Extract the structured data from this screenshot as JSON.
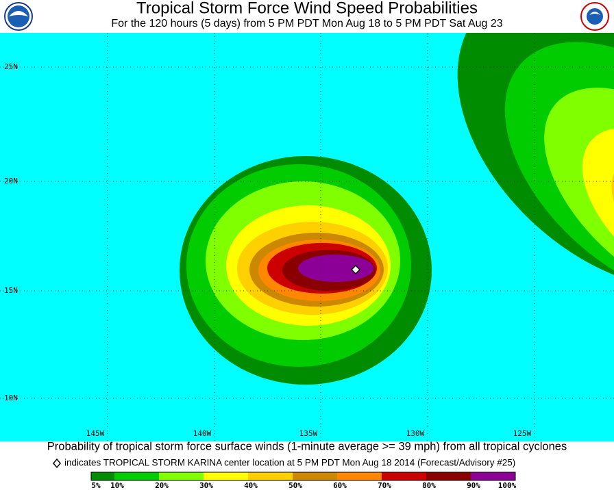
{
  "header": {
    "title": "Tropical Storm Force Wind Speed Probabilities",
    "subtitle": "For the 120 hours (5 days) from 5 PM PDT Mon Aug 18 to 5 PM PDT Sat Aug 23"
  },
  "map": {
    "background": "#00ffff",
    "lat_labels": [
      "25N",
      "20N",
      "15N",
      "10N"
    ],
    "lon_labels": [
      "145W",
      "140W",
      "135W",
      "130W",
      "125W"
    ]
  },
  "footer": {
    "caption": "Probability of tropical storm force surface winds (1-minute average >= 39 mph) from all tropical cyclones",
    "note": "indicates TROPICAL STORM KARINA center location at 5 PM PDT Mon Aug 18 2014 (Forecast/Advisory #25)"
  },
  "legend": {
    "labels": [
      "5%",
      "10%",
      "20%",
      "30%",
      "40%",
      "50%",
      "60%",
      "70%",
      "80%",
      "90%",
      "100%"
    ],
    "colors": [
      "#008c00",
      "#00cc00",
      "#80ff00",
      "#ffff00",
      "#ffd000",
      "#cc8800",
      "#ff8800",
      "#cc0000",
      "#8a0000",
      "#8c0098"
    ]
  }
}
